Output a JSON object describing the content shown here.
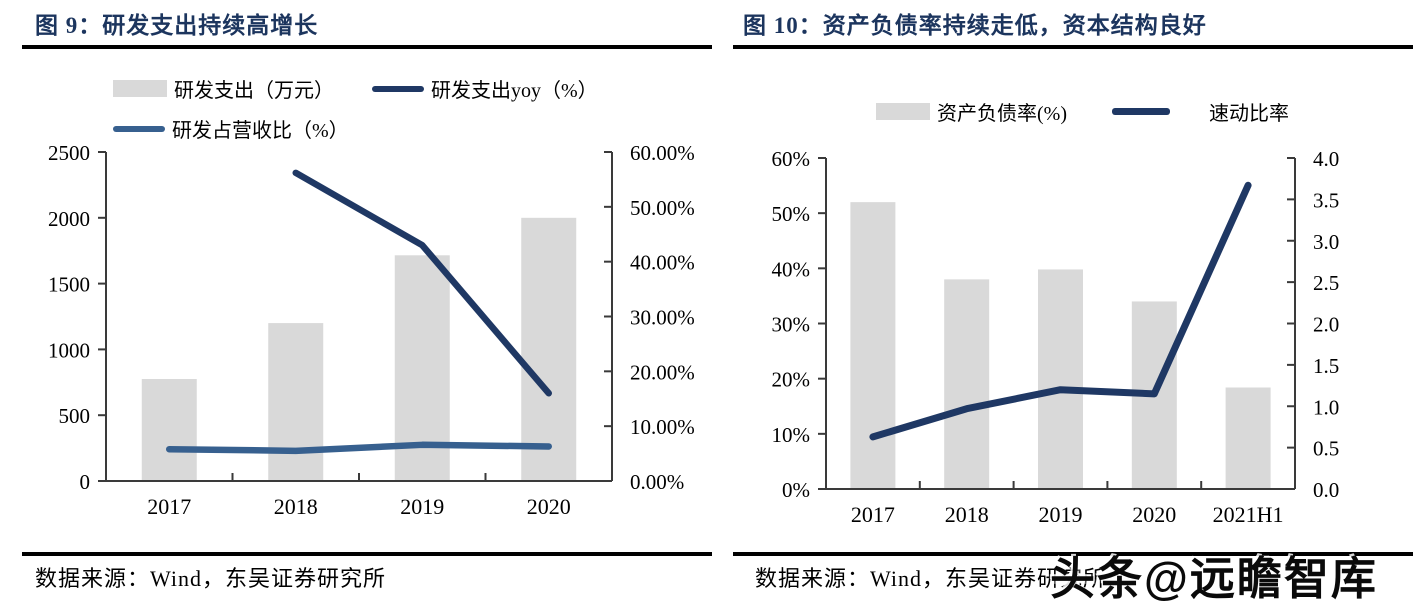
{
  "left_panel": {
    "title": "图 9：研发支出持续高增长",
    "legend": {
      "bar": {
        "label": "研发支出（万元）",
        "color": "#d9d9d9"
      },
      "yoy": {
        "label": "研发支出yoy（%）",
        "color": "#1f3864"
      },
      "ratio": {
        "label": "研发占营收比（%）",
        "color": "#37608f"
      }
    },
    "source": "数据来源：Wind，东吴证券研究所"
  },
  "right_panel": {
    "title": "图 10：资产负债率持续走低，资本结构良好",
    "legend": {
      "bar": {
        "label": "资产负债率(%)",
        "color": "#d9d9d9"
      },
      "line": {
        "label": "速动比率",
        "color": "#1f3864"
      }
    },
    "source": "数据来源：Wind，东吴证券研究所"
  },
  "watermark": "头条@远瞻智库",
  "chart_data": [
    {
      "type": "bar+line",
      "title": "研发支出持续高增长",
      "categories": [
        "2017",
        "2018",
        "2019",
        "2020"
      ],
      "series": [
        {
          "name": "研发支出（万元）",
          "type": "bar",
          "axis": "left",
          "color": "#d9d9d9",
          "values": [
            775,
            1200,
            1715,
            2000
          ]
        },
        {
          "name": "研发支出yoy（%）",
          "type": "line",
          "axis": "right",
          "color": "#1f3864",
          "values": [
            null,
            56.2,
            43.0,
            16.0
          ]
        },
        {
          "name": "研发占营收比（%）",
          "type": "line",
          "axis": "right",
          "color": "#37608f",
          "values": [
            5.8,
            5.5,
            6.6,
            6.3
          ]
        }
      ],
      "left_axis": {
        "min": 0,
        "max": 2500,
        "ticks": [
          "0",
          "500",
          "1000",
          "1500",
          "2000",
          "2500"
        ]
      },
      "right_axis": {
        "min": 0,
        "max": 60,
        "ticks": [
          "0.00%",
          "10.00%",
          "20.00%",
          "30.00%",
          "40.00%",
          "50.00%",
          "60.00%"
        ]
      },
      "legend_position": "top",
      "grid": false
    },
    {
      "type": "bar+line",
      "title": "资产负债率持续走低，资本结构良好",
      "categories": [
        "2017",
        "2018",
        "2019",
        "2020",
        "2021H1"
      ],
      "series": [
        {
          "name": "资产负债率(%)",
          "type": "bar",
          "axis": "left",
          "color": "#d9d9d9",
          "values": [
            52,
            38,
            39.8,
            34,
            18.4
          ]
        },
        {
          "name": "速动比率",
          "type": "line",
          "axis": "right",
          "color": "#1f3864",
          "values": [
            0.63,
            0.97,
            1.2,
            1.15,
            3.67
          ]
        }
      ],
      "left_axis": {
        "min": 0,
        "max": 60,
        "ticks": [
          "0%",
          "10%",
          "20%",
          "30%",
          "40%",
          "50%",
          "60%"
        ]
      },
      "right_axis": {
        "min": 0,
        "max": 4,
        "ticks": [
          "0.0",
          "0.5",
          "1.0",
          "1.5",
          "2.0",
          "2.5",
          "3.0",
          "3.5",
          "4.0"
        ]
      },
      "legend_position": "top",
      "grid": false
    }
  ]
}
